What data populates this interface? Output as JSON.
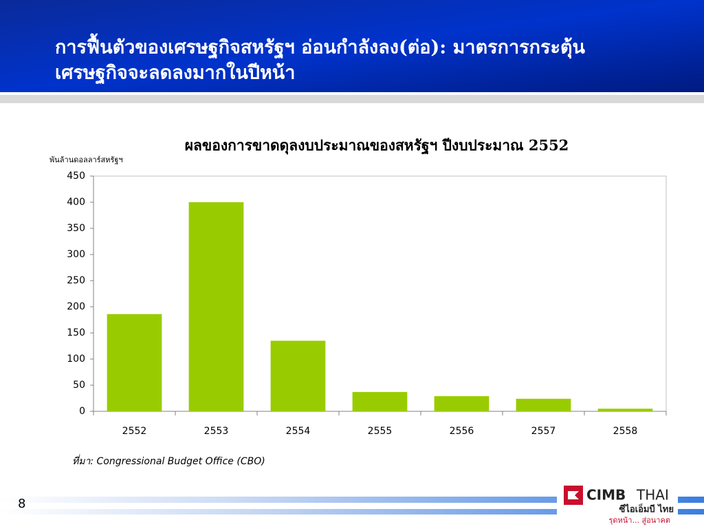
{
  "slide": {
    "title_lines": [
      "การฟื้นตัวของเศรษฐกิจสหรัฐฯ อ่อนกำลังลง(ต่อ): มาตรการกระตุ้น",
      "เศรษฐกิจจะลดลงมากในปีหน้า"
    ],
    "page_number": "8"
  },
  "chart_data": {
    "type": "bar",
    "title": "ผลของการขาดดุลงบประมาณของสหรัฐฯ ปีงบประมาณ 2552",
    "y_label": "พันล้านดอลลาร์สหรัฐฯ",
    "categories": [
      "2552",
      "2553",
      "2554",
      "2555",
      "2556",
      "2557",
      "2558"
    ],
    "values": [
      186,
      400,
      135,
      37,
      29,
      24,
      5
    ],
    "color": "#99cc00",
    "ylim": [
      0,
      450
    ],
    "yticks": [
      0,
      50,
      100,
      150,
      200,
      250,
      300,
      350,
      400,
      450
    ],
    "grid": false,
    "source": "ที่มา: Congressional Budget Office (CBO)"
  },
  "logo": {
    "brand": "CIMB",
    "brand_suffix": "THAI",
    "thai_name": "ซีไอเอ็มบี ไทย",
    "slogan": "รุดหน้า... สู่อนาคต"
  }
}
